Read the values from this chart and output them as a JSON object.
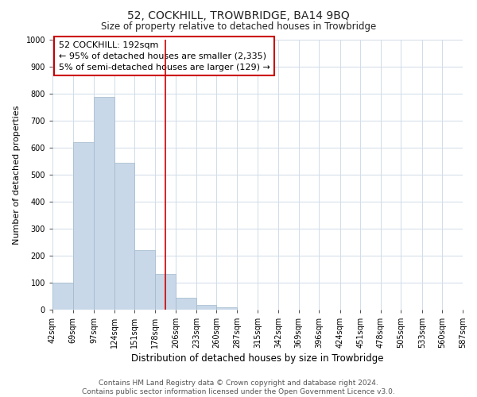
{
  "title": "52, COCKHILL, TROWBRIDGE, BA14 9BQ",
  "subtitle": "Size of property relative to detached houses in Trowbridge",
  "xlabel": "Distribution of detached houses by size in Trowbridge",
  "ylabel": "Number of detached properties",
  "bar_edges": [
    42,
    69,
    97,
    124,
    151,
    178,
    206,
    233,
    260,
    287,
    315,
    342,
    369,
    396,
    424,
    451,
    478,
    505,
    533,
    560,
    587
  ],
  "bar_heights": [
    100,
    622,
    787,
    545,
    220,
    133,
    44,
    18,
    10,
    0,
    0,
    0,
    0,
    0,
    0,
    0,
    0,
    0,
    0,
    0
  ],
  "bar_color": "#c8d8e8",
  "bar_edgecolor": "#a0b8cc",
  "vline_x": 192,
  "vline_color": "#cc0000",
  "annotation_lines": [
    "52 COCKHILL: 192sqm",
    "← 95% of detached houses are smaller (2,335)",
    "5% of semi-detached houses are larger (129) →"
  ],
  "ylim": [
    0,
    1000
  ],
  "yticks": [
    0,
    100,
    200,
    300,
    400,
    500,
    600,
    700,
    800,
    900,
    1000
  ],
  "footer_line1": "Contains HM Land Registry data © Crown copyright and database right 2024.",
  "footer_line2": "Contains public sector information licensed under the Open Government Licence v3.0.",
  "bg_color": "#ffffff",
  "grid_color": "#d0dce8",
  "annotation_box_color": "#ffffff",
  "annotation_box_edgecolor": "#cc0000",
  "title_fontsize": 10,
  "subtitle_fontsize": 8.5,
  "xlabel_fontsize": 8.5,
  "ylabel_fontsize": 8,
  "annotation_fontsize": 8,
  "footer_fontsize": 6.5,
  "tick_fontsize": 7
}
